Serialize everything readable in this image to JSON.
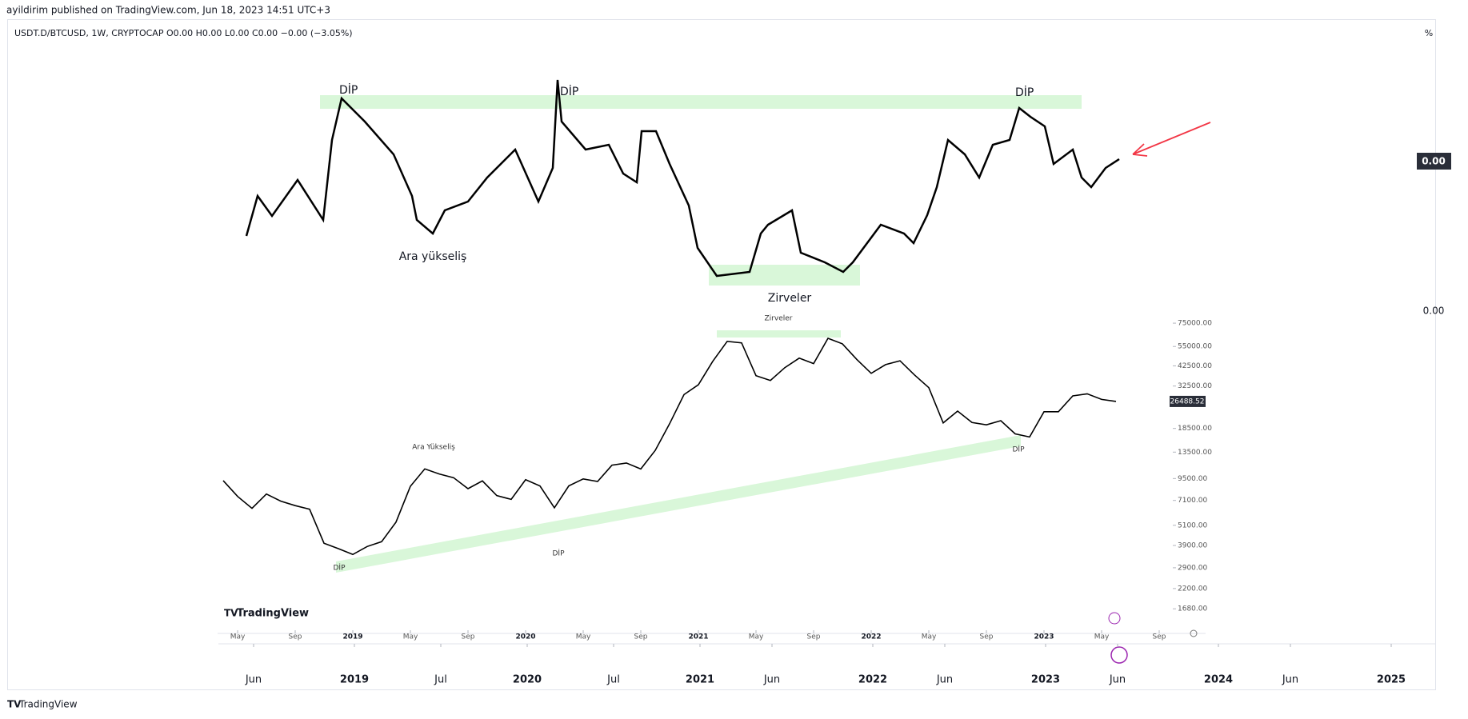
{
  "header": "ayildirim published on TradingView.com, Jun 18, 2023 14:51 UTC+3",
  "symbol_line": "USDT.D/BTCUSD, 1W, CRYPTOCAP  O0.00  H0.00  L0.00  C0.00  −0.00 (−3.05%)",
  "unit": "%",
  "upper_price_label": "0.00",
  "upper_scale_label": "0.00",
  "upper_annotations": [
    "DİP",
    "DİP",
    "DİP",
    "Ara yükseliş",
    "Zirveler"
  ],
  "outer_xticks": [
    {
      "value": "2018-06",
      "label": "Jun"
    },
    {
      "value": "2019-01",
      "label": "2019"
    },
    {
      "value": "2019-07",
      "label": "Jul"
    },
    {
      "value": "2020-01",
      "label": "2020"
    },
    {
      "value": "2020-07",
      "label": "Jul"
    },
    {
      "value": "2021-01",
      "label": "2021"
    },
    {
      "value": "2021-06",
      "label": "Jun"
    },
    {
      "value": "2022-01",
      "label": "2022"
    },
    {
      "value": "2022-06",
      "label": "Jun"
    },
    {
      "value": "2023-01",
      "label": "2023"
    },
    {
      "value": "2023-06",
      "label": "Jun"
    },
    {
      "value": "2024-01",
      "label": "2024"
    },
    {
      "value": "2024-06",
      "label": "Jun"
    },
    {
      "value": "2025-01",
      "label": "2025"
    }
  ],
  "branding": "TradingView",
  "footer": "TradingView",
  "chart_data": {
    "type": "line",
    "color": "#000000",
    "log_scale": true,
    "annotations": [
      "Zirveler",
      "Ara Yükseliş",
      "DİP",
      "DİP",
      "DİP"
    ],
    "x": [
      "2018-04",
      "2018-05",
      "2018-06",
      "2018-07",
      "2018-08",
      "2018-09",
      "2018-10",
      "2018-11",
      "2018-12",
      "2019-01",
      "2019-02",
      "2019-03",
      "2019-04",
      "2019-05",
      "2019-06",
      "2019-07",
      "2019-08",
      "2019-09",
      "2019-10",
      "2019-11",
      "2019-12",
      "2020-01",
      "2020-02",
      "2020-03",
      "2020-04",
      "2020-05",
      "2020-06",
      "2020-07",
      "2020-08",
      "2020-09",
      "2020-10",
      "2020-11",
      "2020-12",
      "2021-01",
      "2021-02",
      "2021-03",
      "2021-04",
      "2021-05",
      "2021-06",
      "2021-07",
      "2021-08",
      "2021-09",
      "2021-10",
      "2021-11",
      "2021-12",
      "2022-01",
      "2022-02",
      "2022-03",
      "2022-04",
      "2022-05",
      "2022-06",
      "2022-07",
      "2022-08",
      "2022-09",
      "2022-10",
      "2022-11",
      "2022-12",
      "2023-01",
      "2023-02",
      "2023-03",
      "2023-04",
      "2023-05",
      "2023-06"
    ],
    "values": [
      9240,
      7490,
      6390,
      7730,
      7030,
      6630,
      6320,
      4020,
      3740,
      3460,
      3850,
      4100,
      5320,
      8570,
      10800,
      10100,
      9600,
      8300,
      9200,
      7570,
      7200,
      9350,
      8600,
      6440,
      8620,
      9450,
      9140,
      11350,
      11680,
      10780,
      13800,
      19700,
      29000,
      33100,
      45200,
      58900,
      57700,
      37300,
      35000,
      41500,
      47100,
      43800,
      61300,
      57000,
      46300,
      38500,
      43200,
      45500,
      37700,
      31800,
      19900,
      23300,
      20000,
      19400,
      20500,
      17200,
      16500,
      23100,
      23100,
      28500,
      29300,
      27200,
      26488.52
    ],
    "xlim": [
      "2018-04",
      "2023-12"
    ],
    "xticks": [
      {
        "value": "2018-05",
        "label": "May"
      },
      {
        "value": "2018-09",
        "label": "Sep"
      },
      {
        "value": "2019-01",
        "label": "2019"
      },
      {
        "value": "2019-05",
        "label": "May"
      },
      {
        "value": "2019-09",
        "label": "Sep"
      },
      {
        "value": "2020-01",
        "label": "2020"
      },
      {
        "value": "2020-05",
        "label": "May"
      },
      {
        "value": "2020-09",
        "label": "Sep"
      },
      {
        "value": "2021-01",
        "label": "2021"
      },
      {
        "value": "2021-05",
        "label": "May"
      },
      {
        "value": "2021-09",
        "label": "Sep"
      },
      {
        "value": "2022-01",
        "label": "2022"
      },
      {
        "value": "2022-05",
        "label": "May"
      },
      {
        "value": "2022-09",
        "label": "Sep"
      },
      {
        "value": "2023-01",
        "label": "2023"
      },
      {
        "value": "2023-05",
        "label": "May"
      },
      {
        "value": "2023-09",
        "label": "Sep"
      }
    ],
    "ylim": [
      1000,
      80000
    ],
    "yticks": [
      {
        "value": 75000,
        "label": "75000.00"
      },
      {
        "value": 55000,
        "label": "55000.00"
      },
      {
        "value": 42500,
        "label": "42500.00"
      },
      {
        "value": 32500,
        "label": "32500.00"
      },
      {
        "value": 18500,
        "label": "18500.00"
      },
      {
        "value": 13500,
        "label": "13500.00"
      },
      {
        "value": 9500,
        "label": "9500.00"
      },
      {
        "value": 7100,
        "label": "7100.00"
      },
      {
        "value": 5100,
        "label": "5100.00"
      },
      {
        "value": 3900,
        "label": "3900.00"
      },
      {
        "value": 2900,
        "label": "2900.00"
      },
      {
        "value": 2200,
        "label": "2200.00"
      },
      {
        "value": 1680,
        "label": "1680.00"
      }
    ]
  }
}
